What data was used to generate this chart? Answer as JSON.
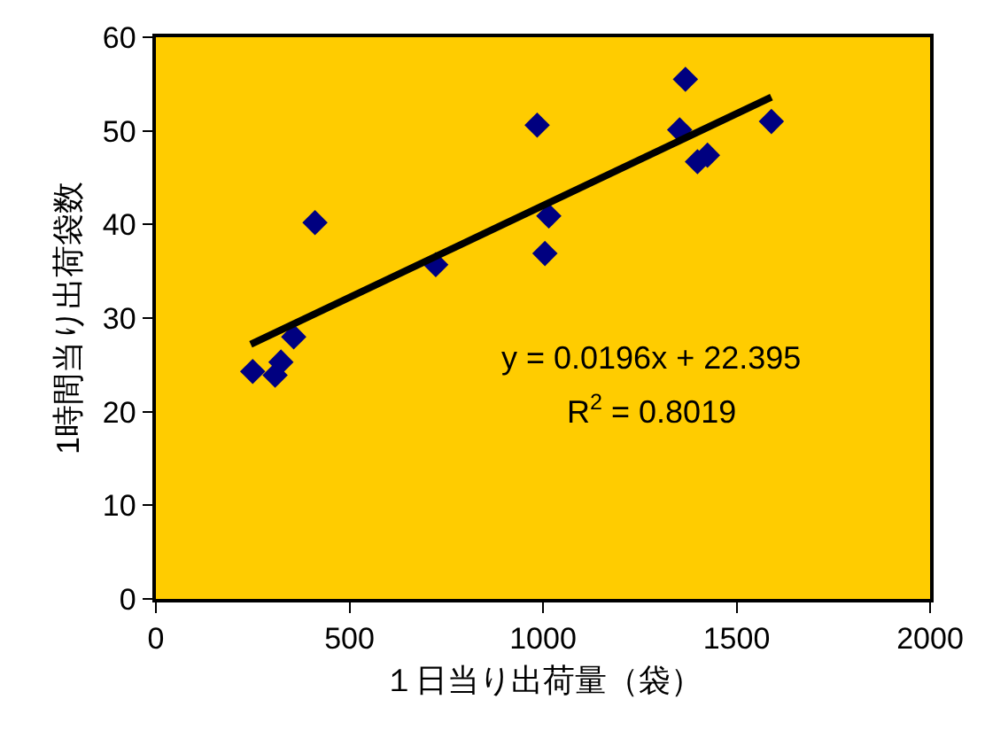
{
  "chart_data": {
    "type": "scatter",
    "xlabel": "１日当り出荷量（袋）",
    "ylabel": "1時間当り出荷袋数",
    "series": [
      {
        "color": "#000080",
        "marker": "diamond",
        "x": [
          250,
          308,
          323,
          356,
          411,
          723,
          985,
          1015,
          1005,
          1368,
          1353,
          1399,
          1425,
          1590
        ],
        "values": [
          24.3,
          23.9,
          25.3,
          28.0,
          40.2,
          35.7,
          50.6,
          40.9,
          36.9,
          55.5,
          50.1,
          46.7,
          47.4,
          51.0
        ]
      },
      {
        "type": "line",
        "color": "#000000",
        "marker": "none",
        "line_style": "solid",
        "x": [
          245,
          1590
        ],
        "values": [
          27.2,
          53.6
        ]
      }
    ],
    "xlim": [
      0,
      2000
    ],
    "xticks": [
      0,
      500,
      1000,
      1500,
      2000
    ],
    "ylim": [
      0,
      60
    ],
    "yticks": [
      0,
      10,
      20,
      30,
      40,
      50,
      60
    ],
    "grid": false,
    "legend": false,
    "annotations": [
      "y = 0.0196x + 22.395",
      "R$^{2}$ = 0.8019"
    ]
  }
}
